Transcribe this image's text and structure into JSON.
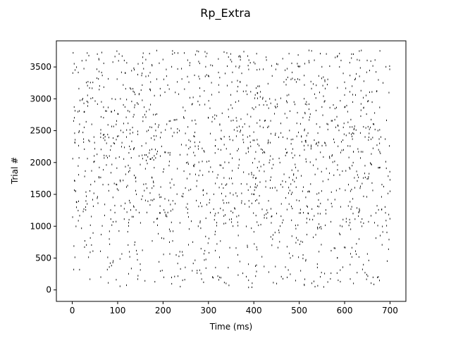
{
  "chart_data": {
    "type": "scatter",
    "subtype": "raster",
    "title": "Rp_Extra",
    "xlabel": "Time (ms)",
    "ylabel": "Trial #",
    "xlim": [
      -35,
      735
    ],
    "ylim": [
      -180,
      3910
    ],
    "xticks": [
      0,
      100,
      200,
      300,
      400,
      500,
      600,
      700
    ],
    "yticks": [
      0,
      500,
      1000,
      1500,
      2000,
      2500,
      3000,
      3500
    ],
    "xtick_labels": [
      "0",
      "100",
      "200",
      "300",
      "400",
      "500",
      "600",
      "700"
    ],
    "ytick_labels": [
      "0",
      "500",
      "1000",
      "1500",
      "2000",
      "2500",
      "3000",
      "3500"
    ],
    "grid": false,
    "legend": "none",
    "marker_color": "#000000",
    "time_range_ms": [
      0,
      700
    ],
    "trial_range": [
      80,
      3760
    ],
    "trial_band_spacing": 50,
    "band_density": [
      {
        "trials": [
          0,
          200
        ],
        "density": 0.05
      },
      {
        "trials": [
          200,
          250
        ],
        "density": 0.55
      },
      {
        "trials": [
          250,
          500
        ],
        "density": 0.35
      },
      {
        "trials": [
          500,
          700
        ],
        "density": 0.45
      },
      {
        "trials": [
          700,
          1000
        ],
        "density": 0.35
      },
      {
        "trials": [
          1000,
          1450
        ],
        "density": 0.8
      },
      {
        "trials": [
          1450,
          2000
        ],
        "density": 0.7
      },
      {
        "trials": [
          2000,
          2700
        ],
        "density": 0.85
      },
      {
        "trials": [
          2700,
          3300
        ],
        "density": 0.65
      },
      {
        "trials": [
          3300,
          3760
        ],
        "density": 0.55
      }
    ]
  }
}
